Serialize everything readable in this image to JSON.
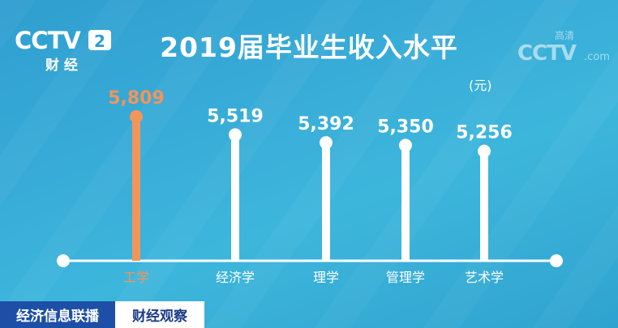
{
  "header": {
    "title": "2019届毕业生收入水平",
    "unit": "(元)"
  },
  "logo_left": {
    "text": "CCTV",
    "channel": "2",
    "sub": "财 经"
  },
  "logo_right": {
    "text": "CCTV",
    "sub": ".com",
    "tag": "高清"
  },
  "colors": {
    "highlight": "#f3955a",
    "bar": "#ffffff",
    "background": "#38acd8",
    "banner": "#1d4fa6"
  },
  "chart_data": {
    "type": "bar",
    "categories": [
      "工学",
      "经济学",
      "理学",
      "管理学",
      "艺术学"
    ],
    "values": [
      5809,
      5519,
      5392,
      5350,
      5256
    ],
    "value_labels": [
      "5,809",
      "5,519",
      "5,392",
      "5,350",
      "5,256"
    ],
    "highlight_index": 0,
    "ylim": [
      3500,
      5809
    ],
    "title": "2019届毕业生收入水平",
    "ylabel": "(元)",
    "grid": false
  },
  "bottom_bar": {
    "program": "经济信息联播",
    "segment": "财经观察"
  }
}
